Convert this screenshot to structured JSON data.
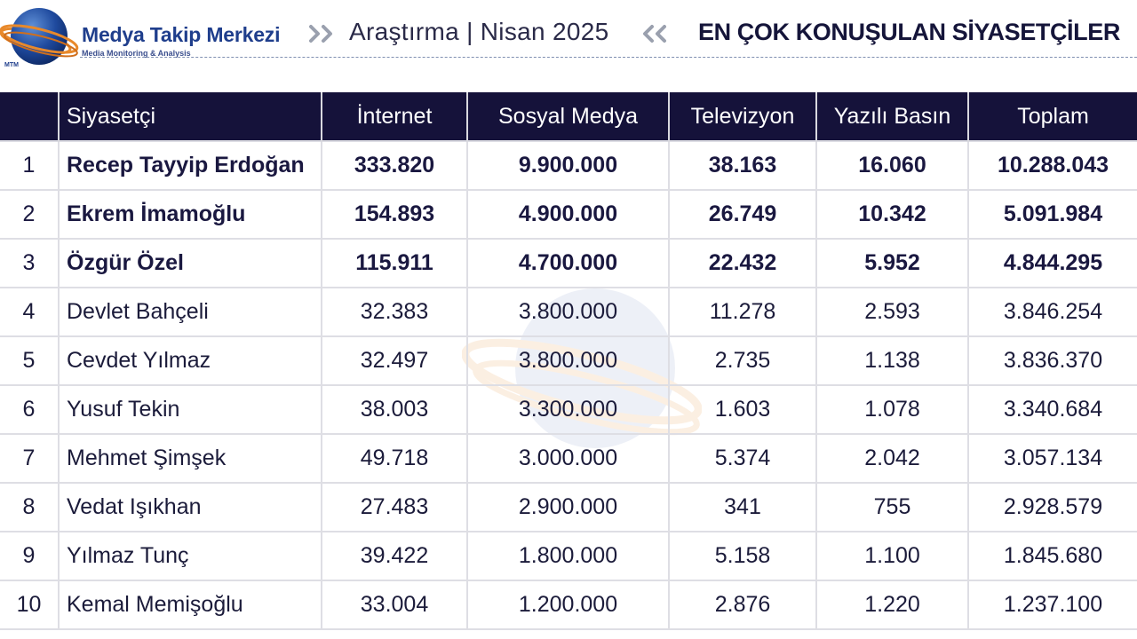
{
  "header": {
    "logo_caption": "MTM",
    "brand_name": "Medya Takip Merkezi",
    "brand_subtitle": "Media Monitoring & Analysis",
    "research_label": "Araştırma | Nisan 2025",
    "title": "EN ÇOK KONUŞULAN SİYASETÇİLER"
  },
  "colors": {
    "header_background": "#15123a",
    "brand_blue": "#1f3e8c",
    "ring_orange": "#e8892b"
  },
  "table": {
    "columns": [
      "",
      "Siyasetçi",
      "İnternet",
      "Sosyal Medya",
      "Televizyon",
      "Yazılı Basın",
      "Toplam"
    ],
    "rows": [
      {
        "rank": "1",
        "name": "Recep Tayyip Erdoğan",
        "internet": "333.820",
        "social": "9.900.000",
        "tv": "38.163",
        "print": "16.060",
        "total": "10.288.043"
      },
      {
        "rank": "2",
        "name": "Ekrem İmamoğlu",
        "internet": "154.893",
        "social": "4.900.000",
        "tv": "26.749",
        "print": "10.342",
        "total": "5.091.984"
      },
      {
        "rank": "3",
        "name": "Özgür Özel",
        "internet": "115.911",
        "social": "4.700.000",
        "tv": "22.432",
        "print": "5.952",
        "total": "4.844.295"
      },
      {
        "rank": "4",
        "name": "Devlet Bahçeli",
        "internet": "32.383",
        "social": "3.800.000",
        "tv": "11.278",
        "print": "2.593",
        "total": "3.846.254"
      },
      {
        "rank": "5",
        "name": "Cevdet Yılmaz",
        "internet": "32.497",
        "social": "3.800.000",
        "tv": "2.735",
        "print": "1.138",
        "total": "3.836.370"
      },
      {
        "rank": "6",
        "name": "Yusuf Tekin",
        "internet": "38.003",
        "social": "3.300.000",
        "tv": "1.603",
        "print": "1.078",
        "total": "3.340.684"
      },
      {
        "rank": "7",
        "name": "Mehmet Şimşek",
        "internet": "49.718",
        "social": "3.000.000",
        "tv": "5.374",
        "print": "2.042",
        "total": "3.057.134"
      },
      {
        "rank": "8",
        "name": "Vedat Işıkhan",
        "internet": "27.483",
        "social": "2.900.000",
        "tv": "341",
        "print": "755",
        "total": "2.928.579"
      },
      {
        "rank": "9",
        "name": "Yılmaz Tunç",
        "internet": "39.422",
        "social": "1.800.000",
        "tv": "5.158",
        "print": "1.100",
        "total": "1.845.680"
      },
      {
        "rank": "10",
        "name": "Kemal Memişoğlu",
        "internet": "33.004",
        "social": "1.200.000",
        "tv": "2.876",
        "print": "1.220",
        "total": "1.237.100"
      }
    ]
  }
}
